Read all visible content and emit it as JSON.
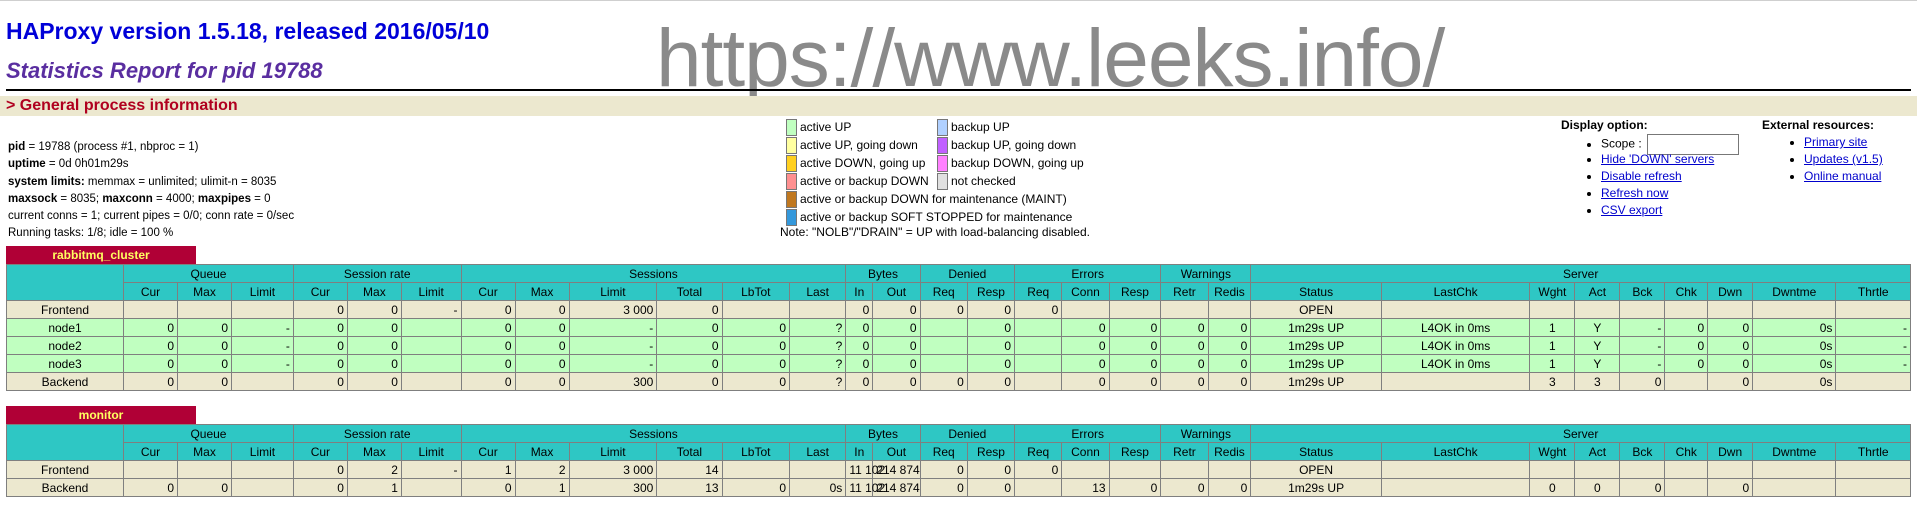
{
  "header": {
    "title": "HAProxy version 1.5.18, released 2016/05/10",
    "subtitle": "Statistics Report for pid 19788",
    "watermark": "https://www.leeks.info/"
  },
  "section": {
    "title": "> General process information"
  },
  "process_info": {
    "pid_label": "pid",
    "pid_text": " = 19788 (process #1, nbproc = 1)",
    "uptime_label": "uptime",
    "uptime_text": " = 0d 0h01m29s",
    "syslimits_label": "system limits:",
    "syslimits_text": " memmax = unlimited; ulimit-n = 8035",
    "maxsock_label": "maxsock",
    "maxsock_text": " = 8035; ",
    "maxconn_label": "maxconn",
    "maxconn_text": " = 4000; ",
    "maxpipes_label": "maxpipes",
    "maxpipes_text": " = 0",
    "conns_text": "current conns = 1; current pipes = 0/0; conn rate = 0/sec",
    "tasks_text": "Running tasks: 1/8; idle = 100 %"
  },
  "legend": {
    "left": [
      {
        "label": "active UP",
        "color": "#c0ffc0"
      },
      {
        "label": "active UP, going down",
        "color": "#ffffa0"
      },
      {
        "label": "active DOWN, going up",
        "color": "#ffd020"
      },
      {
        "label": "active or backup DOWN",
        "color": "#ff9090"
      },
      {
        "label": "active or backup DOWN for maintenance (MAINT)",
        "color": "#c07820"
      },
      {
        "label": "active or backup SOFT STOPPED for maintenance",
        "color": "#3498db"
      }
    ],
    "right": [
      {
        "label": "backup UP",
        "color": "#b0d0ff"
      },
      {
        "label": "backup UP, going down",
        "color": "#c060ff"
      },
      {
        "label": "backup DOWN, going up",
        "color": "#ff80ff"
      },
      {
        "label": "not checked",
        "color": "#e0e0e0"
      }
    ],
    "note": "Note: \"NOLB\"/\"DRAIN\" = UP with load-balancing disabled."
  },
  "display_options": {
    "heading": "Display option:",
    "scope_label": "Scope : ",
    "scope_value": "",
    "hide_down": "Hide 'DOWN' servers",
    "disable_refresh": "Disable refresh",
    "refresh_now": "Refresh now",
    "csv_export": "CSV export"
  },
  "external": {
    "heading": "External resources:",
    "primary": "Primary site",
    "updates": "Updates (v1.5)",
    "manual": "Online manual"
  },
  "proxies": {
    "rabbit": {
      "name": "rabbitmq_cluster"
    },
    "monitor": {
      "name": "monitor"
    }
  },
  "table_headers": {
    "groups": [
      "Queue",
      "Session rate",
      "Sessions",
      "Bytes",
      "Denied",
      "Errors",
      "Warnings",
      "Server"
    ],
    "cols": [
      "Cur",
      "Max",
      "Limit",
      "Cur",
      "Max",
      "Limit",
      "Cur",
      "Max",
      "Limit",
      "Total",
      "LbTot",
      "Last",
      "In",
      "Out",
      "Req",
      "Resp",
      "Req",
      "Conn",
      "Resp",
      "Retr",
      "Redis",
      "Status",
      "LastChk",
      "Wght",
      "Act",
      "Bck",
      "Chk",
      "Dwn",
      "Dwntme",
      "Thrtle"
    ]
  },
  "rabbit_rows": [
    {
      "type": "front",
      "cells": [
        "Frontend",
        "",
        "",
        "",
        "0",
        "0",
        "-",
        "0",
        "0",
        "3 000",
        "0",
        "",
        "",
        "0",
        "0",
        "0",
        "0",
        "0",
        "",
        "",
        "",
        "",
        "OPEN",
        "",
        "",
        "",
        "",
        "",
        "",
        "",
        ""
      ]
    },
    {
      "type": "up",
      "cells": [
        "node1",
        "0",
        "0",
        "-",
        "0",
        "0",
        "",
        "0",
        "0",
        "-",
        "0",
        "0",
        "?",
        "0",
        "0",
        "",
        "0",
        "",
        "0",
        "0",
        "0",
        "0",
        "1m29s UP",
        "L4OK in 0ms",
        "1",
        "Y",
        "-",
        "0",
        "0",
        "0s",
        "-"
      ]
    },
    {
      "type": "up",
      "cells": [
        "node2",
        "0",
        "0",
        "-",
        "0",
        "0",
        "",
        "0",
        "0",
        "-",
        "0",
        "0",
        "?",
        "0",
        "0",
        "",
        "0",
        "",
        "0",
        "0",
        "0",
        "0",
        "1m29s UP",
        "L4OK in 0ms",
        "1",
        "Y",
        "-",
        "0",
        "0",
        "0s",
        "-"
      ]
    },
    {
      "type": "up",
      "cells": [
        "node3",
        "0",
        "0",
        "-",
        "0",
        "0",
        "",
        "0",
        "0",
        "-",
        "0",
        "0",
        "?",
        "0",
        "0",
        "",
        "0",
        "",
        "0",
        "0",
        "0",
        "0",
        "1m29s UP",
        "L4OK in 0ms",
        "1",
        "Y",
        "-",
        "0",
        "0",
        "0s",
        "-"
      ]
    },
    {
      "type": "back",
      "cells": [
        "Backend",
        "0",
        "0",
        "",
        "0",
        "0",
        "",
        "0",
        "0",
        "300",
        "0",
        "0",
        "?",
        "0",
        "0",
        "0",
        "0",
        "",
        "0",
        "0",
        "0",
        "0",
        "1m29s UP",
        "",
        "3",
        "3",
        "0",
        "",
        "0",
        "0s",
        ""
      ]
    }
  ],
  "monitor_rows": [
    {
      "type": "front",
      "cells": [
        "Frontend",
        "",
        "",
        "",
        "0",
        "2",
        "-",
        "1",
        "2",
        "3 000",
        "14",
        "",
        "",
        "11 102",
        "214 874",
        "0",
        "0",
        "0",
        "",
        "",
        "",
        "",
        "OPEN",
        "",
        "",
        "",
        "",
        "",
        "",
        "",
        ""
      ]
    },
    {
      "type": "back",
      "cells": [
        "Backend",
        "0",
        "0",
        "",
        "0",
        "1",
        "",
        "0",
        "1",
        "300",
        "13",
        "0",
        "0s",
        "11 102",
        "214 874",
        "0",
        "0",
        "",
        "13",
        "0",
        "0",
        "0",
        "1m29s UP",
        "",
        "0",
        "0",
        "0",
        "",
        "0",
        "",
        ""
      ]
    }
  ]
}
